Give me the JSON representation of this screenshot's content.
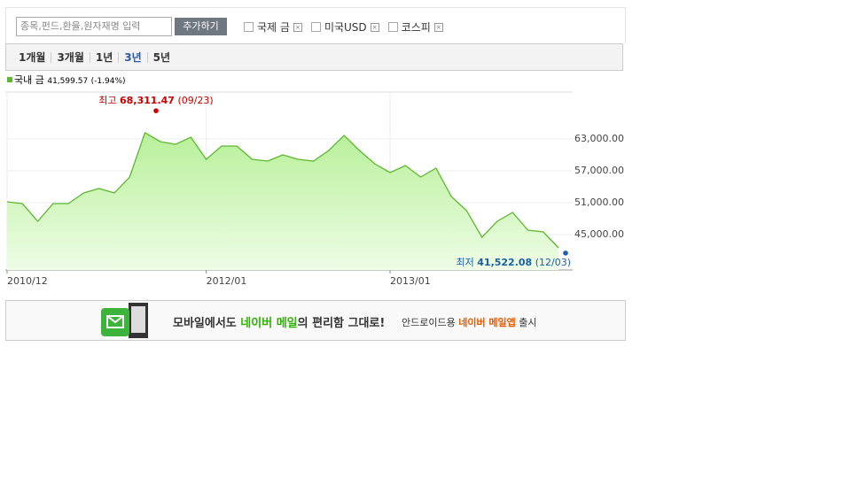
{
  "search": {
    "placeholder": "종목,펀드,환율,원자재명 입력",
    "button": "추가하기"
  },
  "compare_items": [
    "국제 금",
    "미국USD",
    "코스피"
  ],
  "periods": [
    "1개월",
    "3개월",
    "1년",
    "3년",
    "5년"
  ],
  "chart_data": {
    "type": "area",
    "series": [
      {
        "name": "국내 금",
        "color": "#5cb82e",
        "values": [
          51170,
          50830,
          47500,
          50830,
          50830,
          52830,
          53670,
          52830,
          55830,
          64170,
          62500,
          62000,
          63330,
          59170,
          61670,
          61670,
          59170,
          58830,
          60000,
          59170,
          58830,
          60830,
          63670,
          60830,
          58330,
          56670,
          58000,
          55830,
          57500,
          52170,
          49500,
          44500,
          47500,
          49170,
          45830,
          45500,
          42500
        ]
      }
    ],
    "current": "41,599.57",
    "change": "(-1.94%)",
    "categories": [
      "2010/12",
      null,
      null,
      null,
      null,
      null,
      null,
      null,
      null,
      null,
      null,
      null,
      null,
      "2012/01",
      null,
      null,
      null,
      null,
      null,
      null,
      null,
      null,
      null,
      null,
      null,
      "2013/01",
      null,
      null,
      null,
      null,
      null,
      null,
      null,
      null,
      null,
      null,
      null
    ],
    "ylim": [
      38333,
      71833
    ],
    "yticks": [
      {
        "value": 45000,
        "label": "45,000.00"
      },
      {
        "value": 51000,
        "label": "51,000.00"
      },
      {
        "value": 57000,
        "label": "57,000.00"
      },
      {
        "value": 63000,
        "label": "63,000.00"
      }
    ],
    "grid": true,
    "max": {
      "label": "최고",
      "value": 68311.47,
      "value_label": "68,311.47",
      "date": "(09/23)",
      "color": "#cc0000"
    },
    "min": {
      "label": "최저",
      "value": 41522.08,
      "value_label": "41,522.08",
      "date": "(12/03)",
      "color": "#1a5fa8"
    }
  },
  "banner": {
    "part1": "모바일에서도 ",
    "part2": "네이버 메일",
    "part3": "의 편리함 그대로!",
    "part4": "안드로이드용 ",
    "part5": "네이버 메일앱",
    "part6": " 출시"
  }
}
